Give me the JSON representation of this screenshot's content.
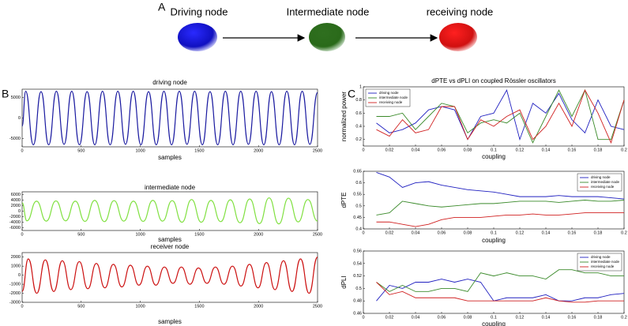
{
  "diagram": {
    "panel_label": "A",
    "nodes": [
      {
        "label": "Driving node"
      },
      {
        "label": "Intermediate node"
      },
      {
        "label": "receiving node"
      }
    ]
  },
  "panel_labels": [
    "B",
    "C"
  ],
  "figure_title": "dPTE vs dPLI on coupled Rössler oscillators",
  "chart_data": [
    {
      "type": "line",
      "title": "driving node",
      "xlabel": "samples",
      "x": [
        0,
        30,
        95,
        160,
        225,
        290,
        355,
        420,
        485,
        550,
        615,
        680,
        745,
        810,
        875,
        940,
        1005,
        1070,
        1135,
        1200,
        1265,
        1330,
        1395,
        1460,
        1525,
        1590,
        1655,
        1720,
        1785,
        1850,
        1915,
        1980,
        2045,
        2110,
        2175,
        2240,
        2305,
        2370,
        2435,
        2500
      ],
      "xlim": [
        0,
        2500
      ],
      "xticks": [
        0,
        500,
        1000,
        1500,
        2000,
        2500
      ],
      "ylim": [
        -7000,
        7000
      ],
      "yticks": [
        -5000,
        0,
        5000
      ],
      "series": [
        {
          "name": "driving node",
          "color": "#1a1aa0",
          "values": [
            -2000,
            6500,
            -6500,
            6400,
            -6500,
            6500,
            -6400,
            6500,
            -6500,
            6400,
            -6500,
            6500,
            -6500,
            6500,
            -6400,
            6500,
            -6500,
            6400,
            -6500,
            6500,
            -6500,
            6500,
            -6400,
            6500,
            -6500,
            6400,
            -6500,
            6500,
            -6500,
            6500,
            -6400,
            6500,
            -6500,
            6400,
            -6500,
            6500,
            -6500,
            6500,
            -6400,
            6200
          ]
        }
      ]
    },
    {
      "type": "line",
      "title": "intermediate node",
      "xlabel": "samples",
      "x": [
        0,
        40,
        122,
        204,
        286,
        368,
        450,
        532,
        614,
        696,
        778,
        860,
        942,
        1024,
        1106,
        1188,
        1270,
        1352,
        1434,
        1516,
        1598,
        1680,
        1762,
        1844,
        1926,
        2008,
        2090,
        2172,
        2254,
        2336,
        2418,
        2500
      ],
      "xlim": [
        0,
        2500
      ],
      "xticks": [
        0,
        500,
        1000,
        1500,
        2000,
        2500
      ],
      "ylim": [
        -7000,
        7000
      ],
      "yticks": [
        -6000,
        -4000,
        -2000,
        0,
        2000,
        4000,
        6000
      ],
      "series": [
        {
          "name": "intermediate node",
          "color": "#80e040",
          "values": [
            3000,
            -3500,
            3600,
            -3600,
            3700,
            -3500,
            3600,
            -3700,
            3900,
            -3800,
            3800,
            -3600,
            3600,
            -3700,
            3900,
            -3600,
            3800,
            -4000,
            4200,
            -4000,
            3900,
            -3800,
            4100,
            -4200,
            4400,
            -4500,
            4800,
            -4600,
            4700,
            -3900,
            4200,
            -3600
          ]
        }
      ]
    },
    {
      "type": "line",
      "title": "receiver node",
      "xlabel": "samples",
      "x": [
        0,
        52,
        124,
        196,
        268,
        340,
        412,
        484,
        556,
        628,
        700,
        772,
        844,
        916,
        988,
        1060,
        1132,
        1204,
        1276,
        1348,
        1420,
        1492,
        1564,
        1636,
        1708,
        1780,
        1852,
        1924,
        1996,
        2068,
        2140,
        2212,
        2284,
        2356,
        2428,
        2500
      ],
      "xlim": [
        0,
        2500
      ],
      "xticks": [
        0,
        500,
        1000,
        1500,
        2000,
        2500
      ],
      "ylim": [
        -3000,
        2500
      ],
      "yticks": [
        -3000,
        -2000,
        -1000,
        0,
        1000,
        2000
      ],
      "series": [
        {
          "name": "receiver node",
          "color": "#cc1010",
          "values": [
            -1800,
            1800,
            -2000,
            1700,
            -1800,
            1600,
            -1600,
            1500,
            -1500,
            1300,
            -1400,
            1200,
            -1300,
            1100,
            -1100,
            1000,
            -1100,
            900,
            -900,
            900,
            -1000,
            800,
            -900,
            900,
            -1000,
            1000,
            -1200,
            1200,
            -1400,
            1400,
            -1600,
            1600,
            -1800,
            1800,
            -2000,
            2000
          ]
        }
      ]
    },
    {
      "type": "line",
      "xlabel": "coupling",
      "ylabel": "normalized power",
      "legend": "upper left",
      "x": [
        0.01,
        0.02,
        0.03,
        0.04,
        0.05,
        0.06,
        0.07,
        0.08,
        0.09,
        0.1,
        0.11,
        0.12,
        0.13,
        0.14,
        0.15,
        0.16,
        0.17,
        0.18,
        0.19,
        0.2
      ],
      "xlim": [
        0,
        0.2
      ],
      "xticks": [
        0,
        0.02,
        0.04,
        0.06,
        0.08,
        0.1,
        0.12,
        0.14,
        0.16,
        0.18,
        0.2
      ],
      "ylim": [
        0.1,
        1
      ],
      "yticks": [
        0.2,
        0.4,
        0.6,
        0.8,
        1
      ],
      "series": [
        {
          "name": "driving node",
          "color": "#2020c0",
          "values": [
            0.45,
            0.3,
            0.35,
            0.45,
            0.65,
            0.7,
            0.65,
            0.2,
            0.55,
            0.6,
            0.95,
            0.2,
            0.75,
            0.6,
            0.9,
            0.5,
            0.3,
            0.8,
            0.4,
            0.35
          ]
        },
        {
          "name": "intermediate node",
          "color": "#3a8a2a",
          "values": [
            0.55,
            0.55,
            0.6,
            0.35,
            0.55,
            0.75,
            0.7,
            0.3,
            0.45,
            0.5,
            0.45,
            0.6,
            0.15,
            0.55,
            0.95,
            0.55,
            0.95,
            0.2,
            0.2,
            0.8
          ]
        },
        {
          "name": "receiving node",
          "color": "#d02020",
          "values": [
            0.35,
            0.25,
            0.5,
            0.3,
            0.35,
            0.7,
            0.7,
            0.2,
            0.5,
            0.4,
            0.55,
            0.65,
            0.2,
            0.4,
            0.75,
            0.4,
            0.95,
            0.6,
            0.15,
            0.8
          ]
        }
      ]
    },
    {
      "type": "line",
      "xlabel": "coupling",
      "ylabel": "dPTE",
      "legend": "upper right",
      "x": [
        0.01,
        0.02,
        0.03,
        0.04,
        0.05,
        0.06,
        0.07,
        0.08,
        0.09,
        0.1,
        0.11,
        0.12,
        0.13,
        0.14,
        0.15,
        0.16,
        0.17,
        0.18,
        0.19,
        0.2
      ],
      "xlim": [
        0,
        0.2
      ],
      "xticks": [
        0,
        0.02,
        0.04,
        0.06,
        0.08,
        0.1,
        0.12,
        0.14,
        0.16,
        0.18,
        0.2
      ],
      "ylim": [
        0.4,
        0.65
      ],
      "yticks": [
        0.4,
        0.45,
        0.5,
        0.55,
        0.6,
        0.65
      ],
      "series": [
        {
          "name": "driving node",
          "color": "#2020c0",
          "values": [
            0.645,
            0.625,
            0.58,
            0.6,
            0.605,
            0.59,
            0.58,
            0.57,
            0.565,
            0.56,
            0.55,
            0.54,
            0.54,
            0.54,
            0.545,
            0.54,
            0.54,
            0.54,
            0.535,
            0.53
          ]
        },
        {
          "name": "intermediate node",
          "color": "#3a8a2a",
          "values": [
            0.46,
            0.47,
            0.52,
            0.51,
            0.5,
            0.495,
            0.5,
            0.505,
            0.51,
            0.51,
            0.515,
            0.52,
            0.52,
            0.52,
            0.515,
            0.52,
            0.525,
            0.52,
            0.52,
            0.525
          ]
        },
        {
          "name": "receiving node",
          "color": "#d02020",
          "values": [
            0.43,
            0.43,
            0.42,
            0.41,
            0.42,
            0.44,
            0.45,
            0.45,
            0.45,
            0.455,
            0.46,
            0.46,
            0.465,
            0.46,
            0.46,
            0.465,
            0.47,
            0.47,
            0.47,
            0.47
          ]
        }
      ]
    },
    {
      "type": "line",
      "xlabel": "coupling",
      "ylabel": "dPLI",
      "legend": "upper right",
      "x": [
        0.01,
        0.02,
        0.03,
        0.04,
        0.05,
        0.06,
        0.07,
        0.08,
        0.09,
        0.1,
        0.11,
        0.12,
        0.13,
        0.14,
        0.15,
        0.16,
        0.17,
        0.18,
        0.19,
        0.2
      ],
      "xlim": [
        0,
        0.2
      ],
      "xticks": [
        0,
        0.02,
        0.04,
        0.06,
        0.08,
        0.1,
        0.12,
        0.14,
        0.16,
        0.18,
        0.2
      ],
      "ylim": [
        0.46,
        0.56
      ],
      "yticks": [
        0.46,
        0.48,
        0.5,
        0.52,
        0.54,
        0.56
      ],
      "series": [
        {
          "name": "driving node",
          "color": "#2020c0",
          "values": [
            0.48,
            0.505,
            0.5,
            0.51,
            0.51,
            0.515,
            0.51,
            0.515,
            0.51,
            0.48,
            0.485,
            0.485,
            0.485,
            0.49,
            0.48,
            0.48,
            0.485,
            0.485,
            0.49,
            0.492
          ]
        },
        {
          "name": "intermediate node",
          "color": "#3a8a2a",
          "values": [
            0.51,
            0.495,
            0.505,
            0.495,
            0.495,
            0.5,
            0.5,
            0.495,
            0.525,
            0.52,
            0.525,
            0.52,
            0.52,
            0.515,
            0.53,
            0.53,
            0.525,
            0.525,
            0.52,
            0.52
          ]
        },
        {
          "name": "receiving node",
          "color": "#d02020",
          "values": [
            0.51,
            0.49,
            0.495,
            0.485,
            0.485,
            0.485,
            0.485,
            0.48,
            0.48,
            0.48,
            0.48,
            0.48,
            0.48,
            0.485,
            0.48,
            0.478,
            0.478,
            0.48,
            0.48,
            0.48
          ]
        }
      ]
    }
  ]
}
